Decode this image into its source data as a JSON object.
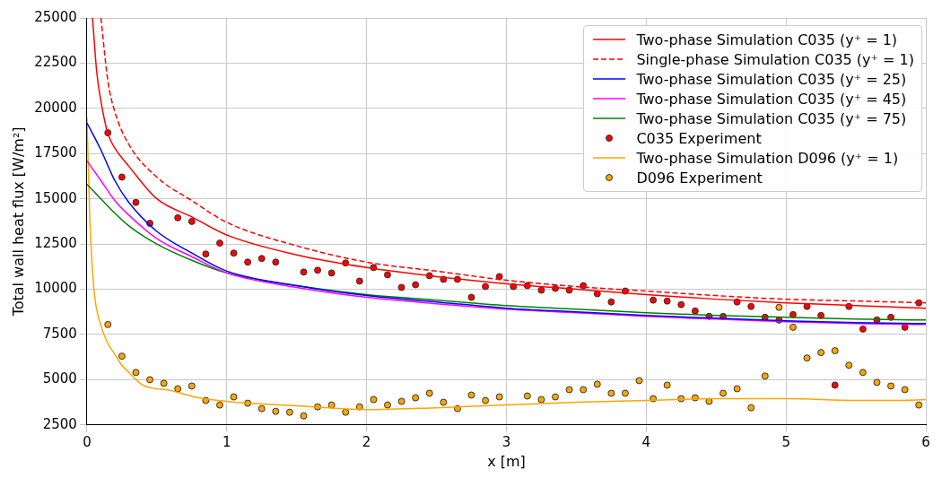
{
  "chart_data": {
    "type": "line",
    "xlabel": "x [m]",
    "ylabel": "Total wall heat flux [W/m²]",
    "xlim": [
      0,
      6
    ],
    "xticks": [
      0,
      1,
      2,
      3,
      4,
      5,
      6
    ],
    "ylim": [
      2500,
      25000
    ],
    "yticks": [
      2500,
      5000,
      7500,
      10000,
      12500,
      15000,
      17500,
      20000,
      22500,
      25000
    ],
    "grid": true,
    "legend": "top right",
    "series": [
      {
        "name": "Two-phase Simulation C035 (y⁺ = 1)",
        "type": "line",
        "color": "#ff0000",
        "line_style": "solid",
        "marker": "none",
        "x": [
          0.04,
          0.07,
          0.1,
          0.15,
          0.2,
          0.3,
          0.5,
          0.75,
          1.0,
          1.5,
          2.0,
          2.5,
          3.0,
          3.5,
          4.0,
          4.5,
          5.0,
          5.5,
          6.0
        ],
        "values": [
          25000,
          22000,
          20400,
          18600,
          17800,
          16800,
          15000,
          14000,
          13000,
          11900,
          11200,
          10700,
          10300,
          10000,
          9700,
          9450,
          9250,
          9100,
          8950
        ]
      },
      {
        "name": "Single-phase Simulation C035 (y⁺ = 1)",
        "type": "line",
        "color": "#ff0000",
        "line_style": "dashed",
        "marker": "none",
        "x": [
          0.1,
          0.15,
          0.2,
          0.3,
          0.5,
          0.75,
          1.0,
          1.5,
          2.0,
          2.5,
          3.0,
          3.5,
          4.0,
          4.5,
          5.0,
          5.5,
          6.0
        ],
        "values": [
          25000,
          21500,
          19800,
          18000,
          16200,
          14900,
          13700,
          12400,
          11500,
          11000,
          10500,
          10150,
          9900,
          9650,
          9450,
          9350,
          9250
        ]
      },
      {
        "name": "Two-phase Simulation C035 (y⁺ = 25)",
        "type": "line",
        "color": "#0000ff",
        "line_style": "solid",
        "marker": "none",
        "x": [
          0,
          0.1,
          0.2,
          0.3,
          0.5,
          0.75,
          1.0,
          1.5,
          2.0,
          2.5,
          3.0,
          3.5,
          4.0,
          4.5,
          5.0,
          5.5,
          6.0
        ],
        "values": [
          19200,
          17700,
          16000,
          14800,
          13200,
          12000,
          11000,
          10200,
          9650,
          9300,
          8950,
          8750,
          8550,
          8400,
          8250,
          8150,
          8100
        ]
      },
      {
        "name": "Two-phase Simulation C035 (y⁺ = 45)",
        "type": "line",
        "color": "#ff00ff",
        "line_style": "solid",
        "marker": "none",
        "x": [
          0,
          0.1,
          0.2,
          0.3,
          0.5,
          0.75,
          1.0,
          1.5,
          2.0,
          2.5,
          3.0,
          3.5,
          4.0,
          4.5,
          5.0,
          5.5,
          6.0
        ],
        "values": [
          17100,
          16000,
          14900,
          14100,
          12800,
          11800,
          10900,
          10100,
          9550,
          9200,
          8900,
          8700,
          8500,
          8350,
          8200,
          8100,
          8050
        ]
      },
      {
        "name": "Two-phase Simulation C035 (y⁺ = 75)",
        "type": "line",
        "color": "#008000",
        "line_style": "solid",
        "marker": "none",
        "x": [
          0,
          0.1,
          0.2,
          0.3,
          0.5,
          0.75,
          1.0,
          1.5,
          2.0,
          2.5,
          3.0,
          3.5,
          4.0,
          4.5,
          5.0,
          5.5,
          6.0
        ],
        "values": [
          15800,
          15000,
          14200,
          13500,
          12500,
          11600,
          10900,
          10200,
          9700,
          9400,
          9100,
          8900,
          8700,
          8550,
          8450,
          8350,
          8300
        ]
      },
      {
        "name": "C035 Experiment",
        "type": "scatter",
        "color": "#ff0000",
        "marker": "circle",
        "x": [
          0.15,
          0.25,
          0.35,
          0.45,
          0.65,
          0.75,
          0.85,
          0.95,
          1.05,
          1.15,
          1.25,
          1.35,
          1.55,
          1.65,
          1.75,
          1.85,
          1.95,
          2.05,
          2.15,
          2.25,
          2.35,
          2.45,
          2.55,
          2.65,
          2.75,
          2.85,
          2.95,
          3.05,
          3.15,
          3.25,
          3.35,
          3.45,
          3.55,
          3.65,
          3.75,
          3.85,
          4.05,
          4.15,
          4.25,
          4.35,
          4.45,
          4.55,
          4.65,
          4.75,
          4.85,
          4.95,
          5.05,
          5.15,
          5.25,
          5.35,
          5.45,
          5.55,
          5.65,
          5.75,
          5.85,
          5.95
        ],
        "values": [
          18650,
          16200,
          14800,
          13650,
          13950,
          13750,
          11950,
          12550,
          12000,
          11500,
          11700,
          11500,
          10950,
          11050,
          10900,
          11450,
          10450,
          11200,
          10800,
          10100,
          10250,
          10750,
          10550,
          10550,
          9550,
          10150,
          10700,
          10150,
          10200,
          9950,
          10050,
          9950,
          10200,
          9750,
          9300,
          9900,
          9400,
          9350,
          9150,
          8800,
          8500,
          8500,
          9300,
          9050,
          8450,
          8300,
          8600,
          9050,
          8550,
          4700,
          9050,
          7800,
          8300,
          8450,
          7900,
          9250
        ]
      },
      {
        "name": "Two-phase Simulation D096 (y⁺ = 1)",
        "type": "line",
        "color": "#ffa500",
        "line_style": "solid",
        "marker": "none",
        "x": [
          0,
          0.02,
          0.05,
          0.1,
          0.15,
          0.2,
          0.25,
          0.3,
          0.4,
          0.6,
          0.8,
          1.0,
          1.5,
          2.0,
          2.5,
          3.0,
          3.5,
          4.0,
          4.5,
          5.0,
          5.5,
          5.8,
          6.0
        ],
        "values": [
          19500,
          14000,
          10000,
          8000,
          7000,
          6400,
          5800,
          5400,
          4700,
          4400,
          4000,
          3800,
          3550,
          3350,
          3450,
          3600,
          3750,
          3850,
          3950,
          3950,
          3850,
          3850,
          3900
        ]
      },
      {
        "name": "D096 Experiment",
        "type": "scatter",
        "color": "#ffa500",
        "marker": "circle",
        "x": [
          0.15,
          0.25,
          0.35,
          0.45,
          0.55,
          0.65,
          0.75,
          0.85,
          0.95,
          1.05,
          1.15,
          1.25,
          1.35,
          1.45,
          1.55,
          1.65,
          1.75,
          1.85,
          1.95,
          2.05,
          2.15,
          2.25,
          2.35,
          2.45,
          2.55,
          2.65,
          2.75,
          2.85,
          2.95,
          3.15,
          3.25,
          3.35,
          3.45,
          3.55,
          3.65,
          3.75,
          3.85,
          3.95,
          4.05,
          4.15,
          4.25,
          4.35,
          4.45,
          4.55,
          4.65,
          4.75,
          4.85,
          4.95,
          5.05,
          5.15,
          5.25,
          5.35,
          5.45,
          5.55,
          5.65,
          5.75,
          5.85,
          5.95
        ],
        "values": [
          8050,
          6300,
          5400,
          5000,
          4800,
          4500,
          4650,
          3850,
          3600,
          4050,
          3700,
          3400,
          3250,
          3200,
          3000,
          3500,
          3600,
          3200,
          3500,
          3900,
          3600,
          3800,
          4000,
          4250,
          3750,
          3400,
          4150,
          3850,
          4050,
          4100,
          3900,
          4050,
          4450,
          4450,
          4750,
          4250,
          4250,
          4950,
          3950,
          4700,
          3950,
          4000,
          3800,
          4250,
          4500,
          3450,
          5200,
          9000,
          7900,
          6200,
          6500,
          6600,
          5800,
          5400,
          4850,
          4650,
          4450,
          3600
        ]
      }
    ]
  }
}
